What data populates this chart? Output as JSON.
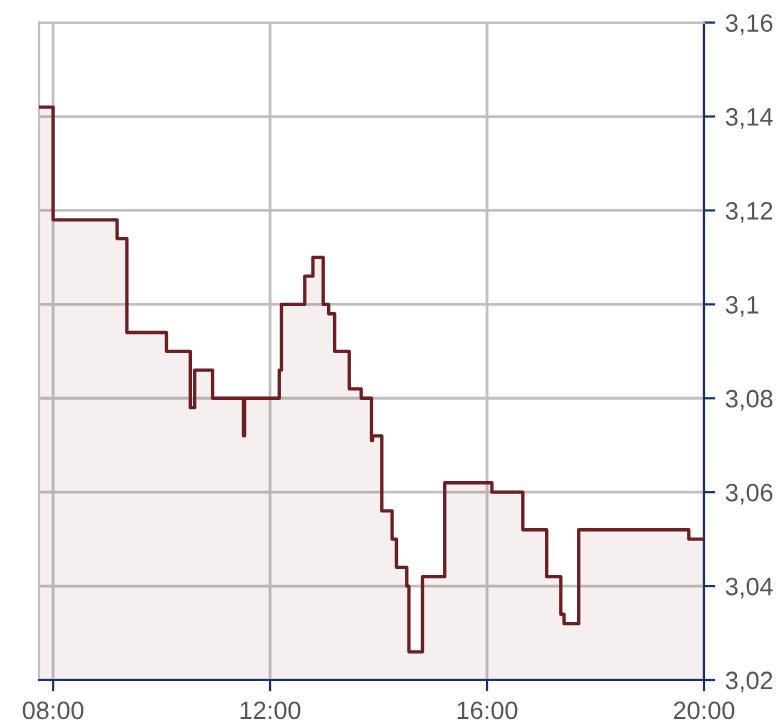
{
  "chart_data": {
    "type": "area",
    "x": [
      7.74,
      8.0,
      8.0,
      9.18,
      9.18,
      9.36,
      9.36,
      10.09,
      10.09,
      10.53,
      10.53,
      10.61,
      10.61,
      10.94,
      10.94,
      11.51,
      11.51,
      11.53,
      11.53,
      12.17,
      12.17,
      12.21,
      12.21,
      12.64,
      12.64,
      12.79,
      12.79,
      12.98,
      12.98,
      13.08,
      13.08,
      13.19,
      13.19,
      13.46,
      13.46,
      13.68,
      13.68,
      13.87,
      13.87,
      13.89,
      13.89,
      14.06,
      14.06,
      14.25,
      14.25,
      14.33,
      14.33,
      14.52,
      14.52,
      14.56,
      14.56,
      14.81,
      14.81,
      15.22,
      15.22,
      16.09,
      16.09,
      16.66,
      16.66,
      17.1,
      17.1,
      17.36,
      17.36,
      17.42,
      17.42,
      17.69,
      17.69,
      19.72,
      19.72,
      20.0
    ],
    "series": [
      {
        "color": "#6b1f22",
        "values": [
          3.142,
          3.142,
          3.118,
          3.118,
          3.114,
          3.114,
          3.094,
          3.094,
          3.09,
          3.09,
          3.078,
          3.078,
          3.086,
          3.086,
          3.08,
          3.08,
          3.072,
          3.072,
          3.08,
          3.08,
          3.086,
          3.086,
          3.1,
          3.1,
          3.106,
          3.106,
          3.11,
          3.11,
          3.1,
          3.1,
          3.098,
          3.098,
          3.09,
          3.09,
          3.082,
          3.082,
          3.08,
          3.08,
          3.071,
          3.071,
          3.072,
          3.072,
          3.056,
          3.056,
          3.05,
          3.05,
          3.044,
          3.044,
          3.04,
          3.04,
          3.026,
          3.026,
          3.042,
          3.042,
          3.062,
          3.062,
          3.06,
          3.06,
          3.052,
          3.052,
          3.042,
          3.042,
          3.034,
          3.034,
          3.032,
          3.032,
          3.052,
          3.052,
          3.05,
          3.05
        ]
      }
    ],
    "xlim": [
      7.74,
      20.0
    ],
    "xticks": [
      {
        "value": 8,
        "label": "08:00"
      },
      {
        "value": 12,
        "label": "12:00"
      },
      {
        "value": 16,
        "label": "16:00"
      },
      {
        "value": 20,
        "label": "20:00"
      }
    ],
    "ylim": [
      3.02,
      3.16
    ],
    "yticks": [
      {
        "value": 3.02,
        "label": "3,02"
      },
      {
        "value": 3.04,
        "label": "3,04"
      },
      {
        "value": 3.06,
        "label": "3,06"
      },
      {
        "value": 3.08,
        "label": "3,08"
      },
      {
        "value": 3.1,
        "label": "3,1"
      },
      {
        "value": 3.12,
        "label": "3,12"
      },
      {
        "value": 3.14,
        "label": "3,14"
      },
      {
        "value": 3.16,
        "label": "3,16"
      }
    ],
    "grid": true
  }
}
